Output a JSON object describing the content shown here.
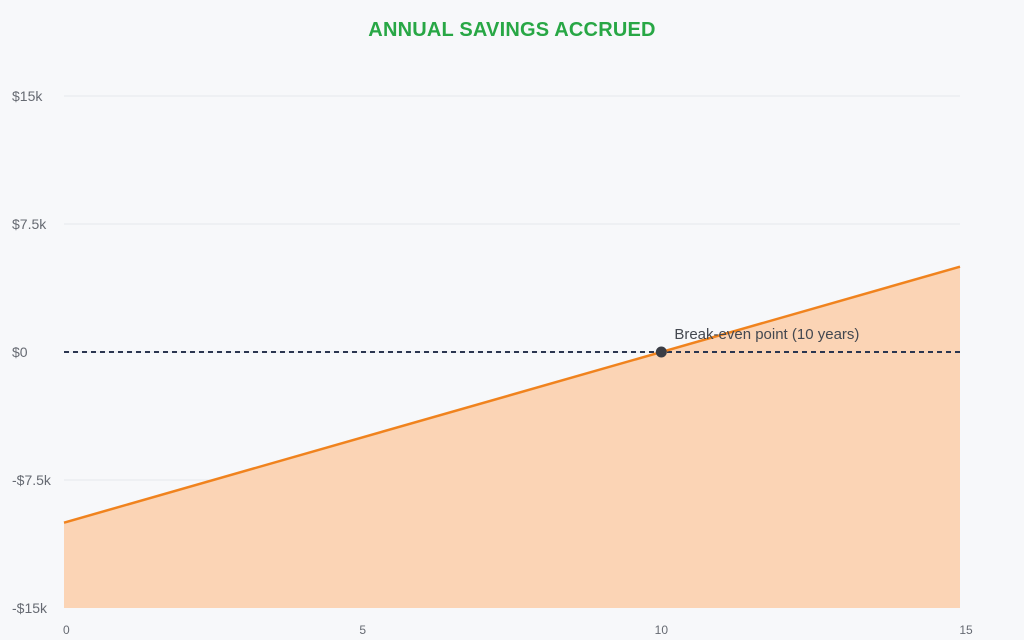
{
  "title": "ANNUAL SAVINGS ACCRUED",
  "colors": {
    "title": "#28a745",
    "line": "#f0831e",
    "area": "#fbd4b5",
    "grid": "#e6e8ec",
    "zero_line": "#2b3650",
    "point": "#3a3d45"
  },
  "chart_data": {
    "type": "area",
    "title": "ANNUAL SAVINGS ACCRUED",
    "xlabel": "",
    "ylabel": "",
    "x_ticks": [
      0,
      5,
      10,
      15
    ],
    "x_tick_labels": [
      "0",
      "5",
      "10",
      "15"
    ],
    "y_ticks": [
      15000,
      7500,
      0,
      -7500,
      -15000
    ],
    "y_tick_labels": [
      "$15k",
      "$7.5k",
      "$0",
      "-$7.5k",
      "-$15k"
    ],
    "xlim": [
      0,
      15
    ],
    "ylim": [
      -15000,
      15000
    ],
    "grid": true,
    "series": [
      {
        "x": [
          0,
          15
        ],
        "values": [
          -10000,
          5000
        ]
      }
    ],
    "reference_line": {
      "y": 0,
      "style": "dashed"
    },
    "annotation": {
      "x": 10,
      "y": 0,
      "text": "Break-even point (10 years)"
    }
  }
}
